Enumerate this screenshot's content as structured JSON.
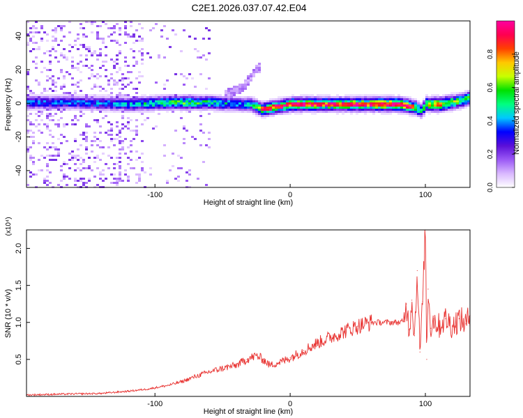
{
  "title": "C2E1.2026.037.07.42.E04",
  "colors": {
    "signal": "#e8312f",
    "axis": "#000000"
  },
  "chart_data": [
    {
      "type": "heatmap",
      "title": "C2E1.2026.037.07.42.E04",
      "xlabel": "Height of straight line (km)",
      "ylabel": "Frequency (Hz)",
      "xlim": [
        -195,
        133
      ],
      "ylim": [
        -50,
        49
      ],
      "x_ticks": [
        {
          "value": -100,
          "label": "-100"
        },
        {
          "value": 0,
          "label": "0"
        },
        {
          "value": 100,
          "label": "100"
        }
      ],
      "y_ticks": [
        {
          "value": -40,
          "label": "-40"
        },
        {
          "value": -20,
          "label": "-20"
        },
        {
          "value": 0,
          "label": "0"
        },
        {
          "value": 20,
          "label": "20"
        },
        {
          "value": 40,
          "label": "40"
        }
      ],
      "colorbar": {
        "label": "Normalized spectral amplitude",
        "range": [
          0,
          1
        ],
        "ticks": [
          {
            "value": 0.0,
            "label": "0.0"
          },
          {
            "value": 0.2,
            "label": "0.2"
          },
          {
            "value": 0.4,
            "label": "0.4"
          },
          {
            "value": 0.6,
            "label": "0.6"
          },
          {
            "value": 0.8,
            "label": "0.8"
          }
        ],
        "stops": [
          "#ffffff",
          "#d9b8ff",
          "#9b59f5",
          "#5a0fd8",
          "#0000ff",
          "#00c8ff",
          "#00ff80",
          "#00e000",
          "#c8ff00",
          "#ffc800",
          "#ff4000",
          "#ff0050",
          "#ff00a0"
        ]
      },
      "ridge": {
        "x": [
          -195,
          -160,
          -120,
          -90,
          -60,
          -40,
          -30,
          -22,
          0,
          40,
          80,
          92,
          96,
          100,
          110,
          125,
          133
        ],
        "freq": [
          1,
          1,
          0,
          1,
          1,
          0,
          0,
          -3,
          0,
          0,
          0,
          -2,
          -4,
          0,
          0,
          2,
          4
        ],
        "amplitude": [
          0.35,
          0.35,
          0.4,
          0.55,
          0.5,
          0.4,
          0.45,
          0.6,
          0.75,
          0.7,
          0.8,
          0.6,
          0.45,
          0.7,
          0.75,
          0.55,
          0.6
        ]
      },
      "streak": {
        "x": [
          -48,
          -36,
          -30,
          -25
        ],
        "freq": [
          6,
          10,
          16,
          22
        ]
      }
    },
    {
      "type": "line",
      "title": "",
      "xlabel": "Height of straight line (km)",
      "ylabel": "SNR (10 * v/v)",
      "scale_label": "(x10⁴)",
      "xlim": [
        -195,
        133
      ],
      "ylim": [
        0,
        2.25
      ],
      "x_ticks": [
        {
          "value": -100,
          "label": "-100"
        },
        {
          "value": 0,
          "label": "0"
        },
        {
          "value": 100,
          "label": "100"
        }
      ],
      "y_ticks": [
        {
          "value": 0.5,
          "label": "0.5"
        },
        {
          "value": 1.0,
          "label": "1.0"
        },
        {
          "value": 1.5,
          "label": "1.5"
        },
        {
          "value": 2.0,
          "label": "2.0"
        }
      ],
      "series": [
        {
          "name": "SNR",
          "x": [
            -195,
            -170,
            -140,
            -120,
            -105,
            -90,
            -80,
            -70,
            -60,
            -50,
            -40,
            -32,
            -25,
            -20,
            -15,
            -10,
            -5,
            0,
            10,
            20,
            30,
            40,
            50,
            60,
            70,
            80,
            84,
            86,
            88,
            90,
            92,
            94,
            96,
            98,
            100,
            101,
            102,
            104,
            106,
            110,
            115,
            120,
            125,
            130,
            133
          ],
          "y": [
            0.02,
            0.03,
            0.04,
            0.07,
            0.1,
            0.15,
            0.2,
            0.27,
            0.33,
            0.38,
            0.42,
            0.5,
            0.55,
            0.5,
            0.42,
            0.45,
            0.48,
            0.52,
            0.62,
            0.72,
            0.8,
            0.88,
            0.95,
            1.0,
            1.0,
            1.0,
            1.01,
            1.25,
            0.9,
            1.3,
            0.82,
            1.7,
            0.6,
            1.28,
            2.3,
            0.5,
            1.45,
            0.92,
            1.05,
            0.95,
            1.05,
            0.95,
            1.05,
            0.98,
            1.1
          ]
        }
      ]
    }
  ]
}
